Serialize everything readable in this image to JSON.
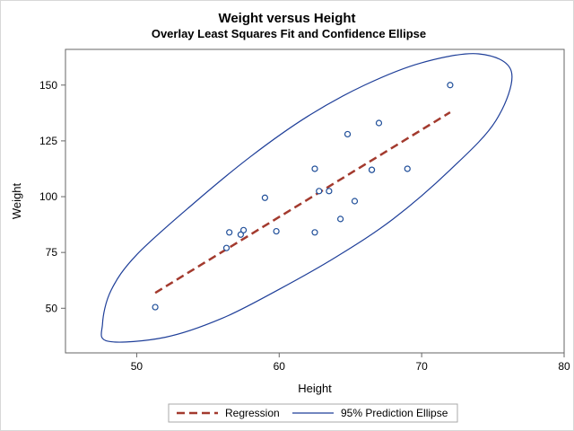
{
  "chart_data": {
    "type": "scatter",
    "title": "Weight versus Height",
    "subtitle": "Overlay Least Squares Fit and Confidence Ellipse",
    "xlabel": "Height",
    "ylabel": "Weight",
    "xlim": [
      45,
      80
    ],
    "ylim": [
      30,
      166
    ],
    "xticks": [
      50,
      60,
      70,
      80
    ],
    "yticks": [
      50,
      75,
      100,
      125,
      150
    ],
    "grid": false,
    "legend_position": "bottom",
    "points": {
      "x": [
        51.3,
        56.3,
        56.5,
        57.3,
        57.5,
        59.0,
        59.8,
        62.5,
        62.5,
        62.8,
        63.5,
        64.3,
        64.8,
        65.3,
        66.5,
        66.5,
        67.0,
        69.0,
        72.0
      ],
      "y": [
        50.5,
        77.0,
        84.0,
        83.0,
        85.0,
        99.5,
        84.5,
        112.5,
        84.0,
        102.5,
        102.5,
        90.0,
        128.0,
        98.0,
        112.0,
        112.0,
        133.0,
        112.5,
        150.0
      ],
      "color": "#1f4e99"
    },
    "series": [
      {
        "name": "Regression",
        "kind": "line",
        "style": "dashed",
        "color": "#a33a2e",
        "x": [
          51.3,
          72.0
        ],
        "y": [
          56.9,
          137.8
        ]
      },
      {
        "name": "95% Prediction Ellipse",
        "kind": "ellipse",
        "color": "#1f3f99",
        "center": [
          62.0,
          100.0
        ],
        "x": [
          48.0,
          52.0,
          56.0,
          60.0,
          64.0,
          68.0,
          72.0,
          75.2,
          76.3,
          74.0,
          70.0,
          66.0,
          62.0,
          58.0,
          54.0,
          50.0,
          48.2,
          47.6
        ],
        "y": [
          35.2,
          37.0,
          45.5,
          58.5,
          73.0,
          90.0,
          112.0,
          134.0,
          156.0,
          164.0,
          160.0,
          150.0,
          136.0,
          118.0,
          97.0,
          74.0,
          58.0,
          43.0
        ]
      }
    ]
  }
}
